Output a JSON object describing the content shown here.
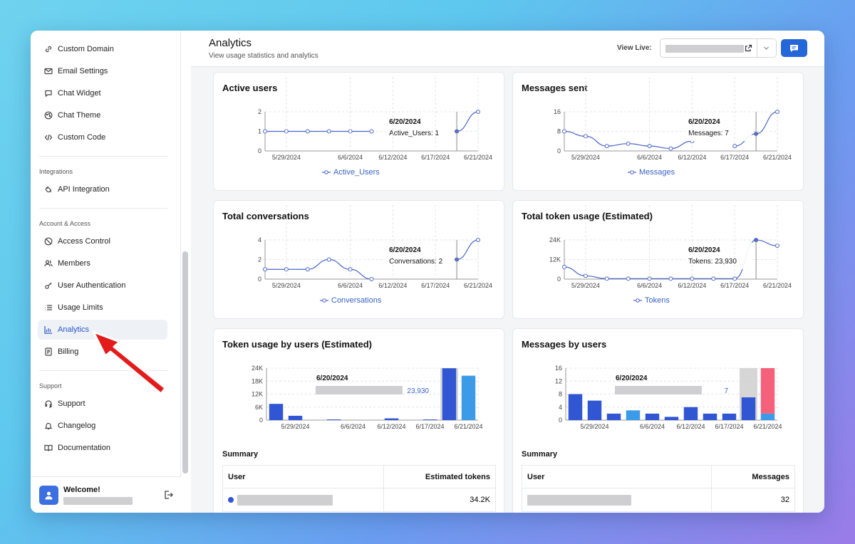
{
  "sidebar": {
    "top_items": [
      {
        "label": "Custom Domain",
        "icon": "link-icon"
      },
      {
        "label": "Email Settings",
        "icon": "mail-icon"
      },
      {
        "label": "Chat Widget",
        "icon": "chat-bubble-icon"
      },
      {
        "label": "Chat Theme",
        "icon": "palette-icon"
      },
      {
        "label": "Custom Code",
        "icon": "code-icon"
      }
    ],
    "integrations": {
      "title": "Integrations",
      "items": [
        {
          "label": "API Integration",
          "icon": "plug-icon"
        }
      ]
    },
    "account": {
      "title": "Account & Access",
      "items": [
        {
          "label": "Access Control",
          "icon": "ban-icon"
        },
        {
          "label": "Members",
          "icon": "users-icon"
        },
        {
          "label": "User Authentication",
          "icon": "key-icon"
        },
        {
          "label": "Usage Limits",
          "icon": "list-icon"
        },
        {
          "label": "Analytics",
          "icon": "bar-chart-icon",
          "active": true
        },
        {
          "label": "Billing",
          "icon": "receipt-icon"
        }
      ]
    },
    "support": {
      "title": "Support",
      "items": [
        {
          "label": "Support",
          "icon": "support-icon"
        },
        {
          "label": "Changelog",
          "icon": "bell-icon"
        },
        {
          "label": "Documentation",
          "icon": "book-icon"
        }
      ]
    },
    "footer": {
      "welcome": "Welcome!"
    }
  },
  "header": {
    "title": "Analytics",
    "subtitle": "View usage statistics and analytics",
    "view_live_label": "View Live:"
  },
  "colors": {
    "primary": "#2566d8",
    "line": "#4a66c7",
    "bar_blue": "#3056d3",
    "bar_light": "#3b9be8",
    "bar_pink": "#f5607a"
  },
  "cards": {
    "active_users": {
      "title": "Active users",
      "legend": "Active_Users",
      "tooltip_date": "6/20/2024",
      "tooltip_text": "Active_Users: 1"
    },
    "messages_sent": {
      "title": "Messages sent",
      "legend": "Messages",
      "tooltip_date": "6/20/2024",
      "tooltip_text": "Messages: 7"
    },
    "total_conversations": {
      "title": "Total conversations",
      "legend": "Conversations",
      "tooltip_date": "6/20/2024",
      "tooltip_text": "Conversations: 2"
    },
    "total_tokens": {
      "title": "Total token usage (Estimated)",
      "legend": "Tokens",
      "tooltip_date": "6/20/2024",
      "tooltip_text": "Tokens: 23,930"
    },
    "tokens_by_users": {
      "title": "Token usage by users (Estimated)",
      "tooltip_date": "6/20/2024",
      "tooltip_value": "23,930"
    },
    "messages_by_users": {
      "title": "Messages by users",
      "tooltip_date": "6/20/2024",
      "tooltip_value": "7"
    }
  },
  "summary_tokens": {
    "title": "Summary",
    "col_user": "User",
    "col_value": "Estimated tokens",
    "rows": [
      {
        "value": "34.2K"
      }
    ]
  },
  "summary_messages": {
    "title": "Summary",
    "col_user": "User",
    "col_value": "Messages",
    "rows": [
      {
        "value": "32"
      }
    ]
  },
  "chart_data": [
    {
      "type": "line",
      "title": "Active users",
      "legend": "Active_Users",
      "x": [
        "5/27/2024",
        "5/29/2024",
        "6/1/2024",
        "6/4/2024",
        "6/6/2024",
        "6/9/2024",
        "6/12/2024",
        "6/15/2024",
        "6/17/2024",
        "6/20/2024",
        "6/21/2024"
      ],
      "x_ticks": [
        "5/29/2024",
        "6/6/2024",
        "6/12/2024",
        "6/17/2024",
        "6/21/2024"
      ],
      "series": [
        {
          "name": "Active_Users",
          "values": [
            1,
            1,
            1,
            1,
            1,
            1,
            null,
            null,
            null,
            1,
            2
          ]
        }
      ],
      "y_ticks": [
        0,
        1,
        2
      ],
      "ylim": [
        0,
        2
      ]
    },
    {
      "type": "line",
      "title": "Messages sent",
      "legend": "Messages",
      "x": [
        "5/27/2024",
        "5/29/2024",
        "6/1/2024",
        "6/4/2024",
        "6/6/2024",
        "6/9/2024",
        "6/12/2024",
        "6/15/2024",
        "6/17/2024",
        "6/20/2024",
        "6/21/2024"
      ],
      "x_ticks": [
        "5/29/2024",
        "6/6/2024",
        "6/12/2024",
        "6/17/2024",
        "6/21/2024"
      ],
      "series": [
        {
          "name": "Messages",
          "values": [
            8,
            6,
            2,
            3,
            2,
            1,
            4,
            null,
            2,
            7,
            16
          ]
        }
      ],
      "y_ticks": [
        0,
        8,
        16
      ],
      "ylim": [
        0,
        16
      ]
    },
    {
      "type": "line",
      "title": "Total conversations",
      "legend": "Conversations",
      "x": [
        "5/27/2024",
        "5/29/2024",
        "6/1/2024",
        "6/4/2024",
        "6/6/2024",
        "6/9/2024",
        "6/12/2024",
        "6/15/2024",
        "6/17/2024",
        "6/20/2024",
        "6/21/2024"
      ],
      "x_ticks": [
        "5/29/2024",
        "6/6/2024",
        "6/12/2024",
        "6/17/2024",
        "6/21/2024"
      ],
      "series": [
        {
          "name": "Conversations",
          "values": [
            1,
            1,
            1,
            2,
            1,
            0,
            null,
            null,
            null,
            2,
            4
          ]
        }
      ],
      "y_ticks": [
        0,
        2,
        4
      ],
      "ylim": [
        0,
        4
      ]
    },
    {
      "type": "line",
      "title": "Total token usage (Estimated)",
      "legend": "Tokens",
      "x": [
        "5/27/2024",
        "5/29/2024",
        "6/1/2024",
        "6/4/2024",
        "6/6/2024",
        "6/9/2024",
        "6/12/2024",
        "6/15/2024",
        "6/17/2024",
        "6/20/2024",
        "6/21/2024"
      ],
      "x_ticks": [
        "5/29/2024",
        "6/6/2024",
        "6/12/2024",
        "6/17/2024",
        "6/21/2024"
      ],
      "series": [
        {
          "name": "Tokens",
          "values": [
            7500,
            2000,
            300,
            300,
            300,
            300,
            300,
            300,
            300,
            23930,
            20500
          ]
        }
      ],
      "y_ticks": [
        "0",
        "12K",
        "24K"
      ],
      "ylim": [
        0,
        24000
      ]
    },
    {
      "type": "bar",
      "title": "Token usage by users (Estimated)",
      "categories": [
        "5/27/2024",
        "5/29/2024",
        "6/1/2024",
        "6/4/2024",
        "6/6/2024",
        "6/9/2024",
        "6/12/2024",
        "6/15/2024",
        "6/17/2024",
        "6/20/2024",
        "6/21/2024"
      ],
      "x_ticks": [
        "5/29/2024",
        "6/6/2024",
        "6/12/2024",
        "6/17/2024",
        "6/21/2024"
      ],
      "series": [
        {
          "values": [
            7500,
            2000,
            0,
            300,
            0,
            0,
            800,
            0,
            300,
            23930,
            0
          ]
        },
        {
          "values": [
            0,
            0,
            0,
            0,
            0,
            0,
            0,
            0,
            0,
            0,
            20500
          ]
        }
      ],
      "y_ticks": [
        "0",
        "6K",
        "12K",
        "18K",
        "24K"
      ],
      "ylim": [
        0,
        24000
      ]
    },
    {
      "type": "bar",
      "title": "Messages by users",
      "categories": [
        "5/27/2024",
        "5/29/2024",
        "6/1/2024",
        "6/4/2024",
        "6/6/2024",
        "6/9/2024",
        "6/12/2024",
        "6/15/2024",
        "6/17/2024",
        "6/20/2024",
        "6/21/2024"
      ],
      "x_ticks": [
        "5/29/2024",
        "6/6/2024",
        "6/12/2024",
        "6/17/2024",
        "6/21/2024"
      ],
      "series": [
        {
          "values": [
            8,
            6,
            2,
            0,
            2,
            1,
            4,
            2,
            2,
            7,
            0
          ]
        },
        {
          "values": [
            0,
            0,
            0,
            3,
            0,
            0,
            0,
            0,
            0,
            0,
            2
          ]
        },
        {
          "values": [
            0,
            0,
            0,
            0,
            0,
            0,
            0,
            0,
            0,
            0,
            14
          ]
        }
      ],
      "y_ticks": [
        0,
        4,
        8,
        12,
        16
      ],
      "ylim": [
        0,
        16
      ]
    }
  ]
}
